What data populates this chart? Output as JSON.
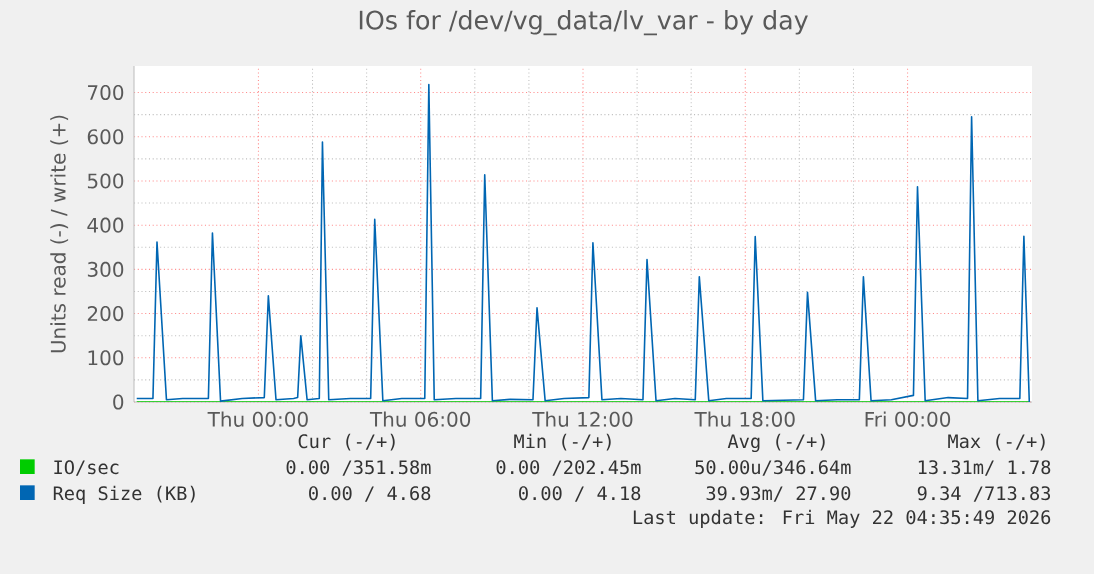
{
  "chart_data": {
    "type": "line",
    "title": "IOs for /dev/vg_data/lv_var - by day",
    "ylabel": "Units read (-) / write (+)",
    "xlim": [
      "2026-05-20T19:24",
      "2026-05-22T04:36"
    ],
    "xticks": [
      {
        "value": "2026-05-21T00:00",
        "label": "Thu 00:00"
      },
      {
        "value": "2026-05-21T06:00",
        "label": "Thu 06:00"
      },
      {
        "value": "2026-05-21T12:00",
        "label": "Thu 12:00"
      },
      {
        "value": "2026-05-21T18:00",
        "label": "Thu 18:00"
      },
      {
        "value": "2026-05-22T00:00",
        "label": "Fri 00:00"
      }
    ],
    "ylim": [
      0,
      760
    ],
    "yticks": [
      0,
      100,
      200,
      300,
      400,
      500,
      600,
      700
    ],
    "grid": true,
    "legend": "bottom",
    "series": [
      {
        "name": "IO/sec",
        "color": "#00cc00",
        "x": [
          "2026-05-20T19:30",
          "2026-05-21T12:00",
          "2026-05-22T04:30"
        ],
        "values": [
          0,
          0,
          0
        ]
      },
      {
        "name": "Req Size (KB)",
        "color": "#0066b3",
        "x": [
          "2026-05-20T19:30",
          "2026-05-20T20:06",
          "2026-05-20T20:15",
          "2026-05-20T20:36",
          "2026-05-20T21:12",
          "2026-05-20T22:09",
          "2026-05-20T22:18",
          "2026-05-20T22:36",
          "2026-05-20T23:24",
          "2026-05-21T00:13",
          "2026-05-21T00:22",
          "2026-05-21T00:39",
          "2026-05-21T01:18",
          "2026-05-21T01:27",
          "2026-05-21T01:34",
          "2026-05-21T01:48",
          "2026-05-21T02:15",
          "2026-05-21T02:22",
          "2026-05-21T02:36",
          "2026-05-21T03:24",
          "2026-05-21T04:09",
          "2026-05-21T04:18",
          "2026-05-21T04:36",
          "2026-05-21T05:18",
          "2026-05-21T06:09",
          "2026-05-21T06:18",
          "2026-05-21T06:30",
          "2026-05-21T07:18",
          "2026-05-21T08:13",
          "2026-05-21T08:22",
          "2026-05-21T08:39",
          "2026-05-21T09:18",
          "2026-05-21T10:09",
          "2026-05-21T10:18",
          "2026-05-21T10:36",
          "2026-05-21T11:18",
          "2026-05-21T12:13",
          "2026-05-21T12:22",
          "2026-05-21T12:42",
          "2026-05-21T13:24",
          "2026-05-21T14:13",
          "2026-05-21T14:22",
          "2026-05-21T14:42",
          "2026-05-21T15:24",
          "2026-05-21T16:09",
          "2026-05-21T16:18",
          "2026-05-21T16:39",
          "2026-05-21T17:18",
          "2026-05-21T18:13",
          "2026-05-21T18:22",
          "2026-05-21T18:39",
          "2026-05-21T19:24",
          "2026-05-21T20:09",
          "2026-05-21T20:18",
          "2026-05-21T20:36",
          "2026-05-21T21:24",
          "2026-05-21T22:13",
          "2026-05-21T22:22",
          "2026-05-21T22:39",
          "2026-05-21T23:24",
          "2026-05-22T00:13",
          "2026-05-22T00:22",
          "2026-05-22T00:39",
          "2026-05-22T01:30",
          "2026-05-22T02:13",
          "2026-05-22T02:22",
          "2026-05-22T02:36",
          "2026-05-22T03:24",
          "2026-05-22T04:09",
          "2026-05-22T04:18",
          "2026-05-22T04:30"
        ],
        "values": [
          8,
          8,
          362,
          5,
          8,
          8,
          382,
          2,
          8,
          10,
          240,
          5,
          8,
          10,
          150,
          5,
          8,
          588,
          5,
          8,
          8,
          413,
          3,
          8,
          8,
          718,
          5,
          8,
          8,
          514,
          3,
          6,
          5,
          213,
          3,
          8,
          10,
          360,
          5,
          8,
          5,
          322,
          3,
          8,
          5,
          283,
          3,
          8,
          8,
          374,
          3,
          4,
          5,
          248,
          3,
          5,
          5,
          283,
          3,
          5,
          15,
          487,
          3,
          10,
          8,
          645,
          3,
          8,
          8,
          375,
          0
        ]
      }
    ],
    "annotations": [
      "Cur (-/+)",
      "Min (-/+)",
      "Avg (-/+)",
      "Max (-/+)",
      "0.00 /351.58m",
      "0.00 /202.45m",
      "50.00u/346.64m",
      "13.31m/ 1.78",
      "0.00 / 4.68",
      "0.00 / 4.18",
      "39.93m/ 27.90",
      "9.34 /713.83",
      "Last update: Fri May 22 04:35:49 2026"
    ]
  }
}
